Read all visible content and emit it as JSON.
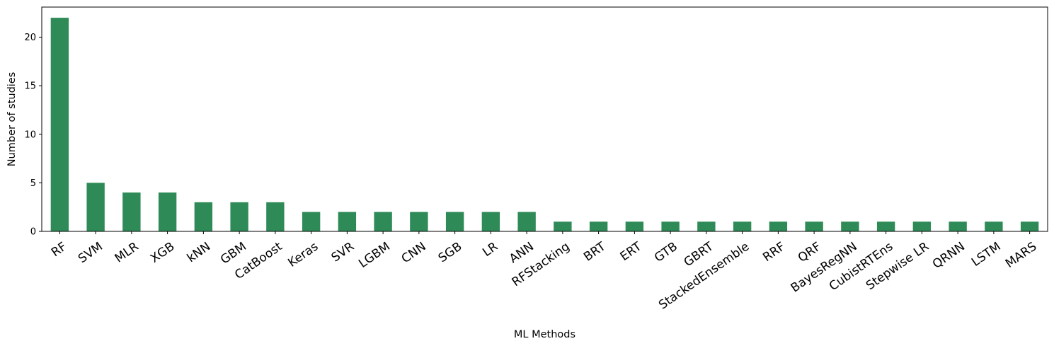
{
  "chart_data": {
    "type": "bar",
    "categories": [
      "RF",
      "SVM",
      "MLR",
      "XGB",
      "kNN",
      "GBM",
      "CatBoost",
      "Keras",
      "SVR",
      "LGBM",
      "CNN",
      "SGB",
      "LR",
      "ANN",
      "RFStacking",
      "BRT",
      "ERT",
      "GTB",
      "GBRT",
      "StackedEnsemble",
      "RRF",
      "QRF",
      "BayesRegNN",
      "CubistRTEns",
      "Stepwise LR",
      "QRNN",
      "LSTM",
      "MARS"
    ],
    "values": [
      22,
      5,
      4,
      4,
      3,
      3,
      3,
      2,
      2,
      2,
      2,
      2,
      2,
      2,
      1,
      1,
      1,
      1,
      1,
      1,
      1,
      1,
      1,
      1,
      1,
      1,
      1,
      1
    ],
    "title": "",
    "xlabel": "ML Methods",
    "ylabel": "Number of studies",
    "ylim": [
      0,
      23.1
    ],
    "yticks": [
      0,
      5,
      10,
      15,
      20
    ],
    "grid": false,
    "bar_color": "#2e8b57",
    "xtick_rotation_deg": 35
  }
}
